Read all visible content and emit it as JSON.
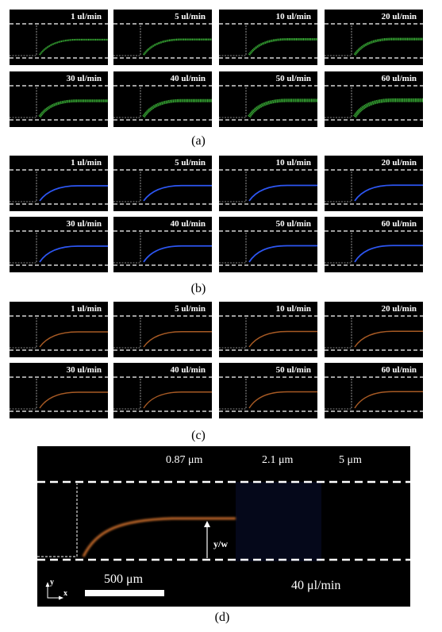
{
  "rows": [
    {
      "group": "a",
      "color": "#3dbb3a",
      "labels": [
        "1 ul/min",
        "5 ul/min",
        "10 ul/min",
        "20 ul/min"
      ]
    },
    {
      "group": "a",
      "color": "#3dbb3a",
      "labels": [
        "30 ul/min",
        "40 ul/min",
        "50 ul/min",
        "60 ul/min"
      ]
    },
    {
      "group": "b",
      "color": "#2f5bff",
      "labels": [
        "1 ul/min",
        "5 ul/min",
        "10 ul/min",
        "20 ul/min"
      ]
    },
    {
      "group": "b",
      "color": "#2f5bff",
      "labels": [
        "30 ul/min",
        "40 ul/min",
        "50 ul/min",
        "60 ul/min"
      ]
    },
    {
      "group": "c",
      "color": "#c46a2a",
      "labels": [
        "1 ul/min",
        "5 ul/min",
        "10 ul/min",
        "20 ul/min"
      ]
    },
    {
      "group": "c",
      "color": "#c46a2a",
      "labels": [
        "30 ul/min",
        "40 ul/min",
        "50 ul/min",
        "60 ul/min"
      ]
    }
  ],
  "captions": {
    "a": "(a)",
    "b": "(b)",
    "c": "(c)",
    "d": "(d)"
  },
  "panel_d": {
    "size_labels": [
      "0.87 μm",
      "2.1 μm",
      "5 μm"
    ],
    "colors": [
      "#c46a2a",
      "#2f5bff",
      "#3dbb3a"
    ],
    "arrow_label": "y/w",
    "scale_label": "500 μm",
    "flow_label": "40 μl/min",
    "axis_y": "y",
    "axis_x": "x"
  }
}
